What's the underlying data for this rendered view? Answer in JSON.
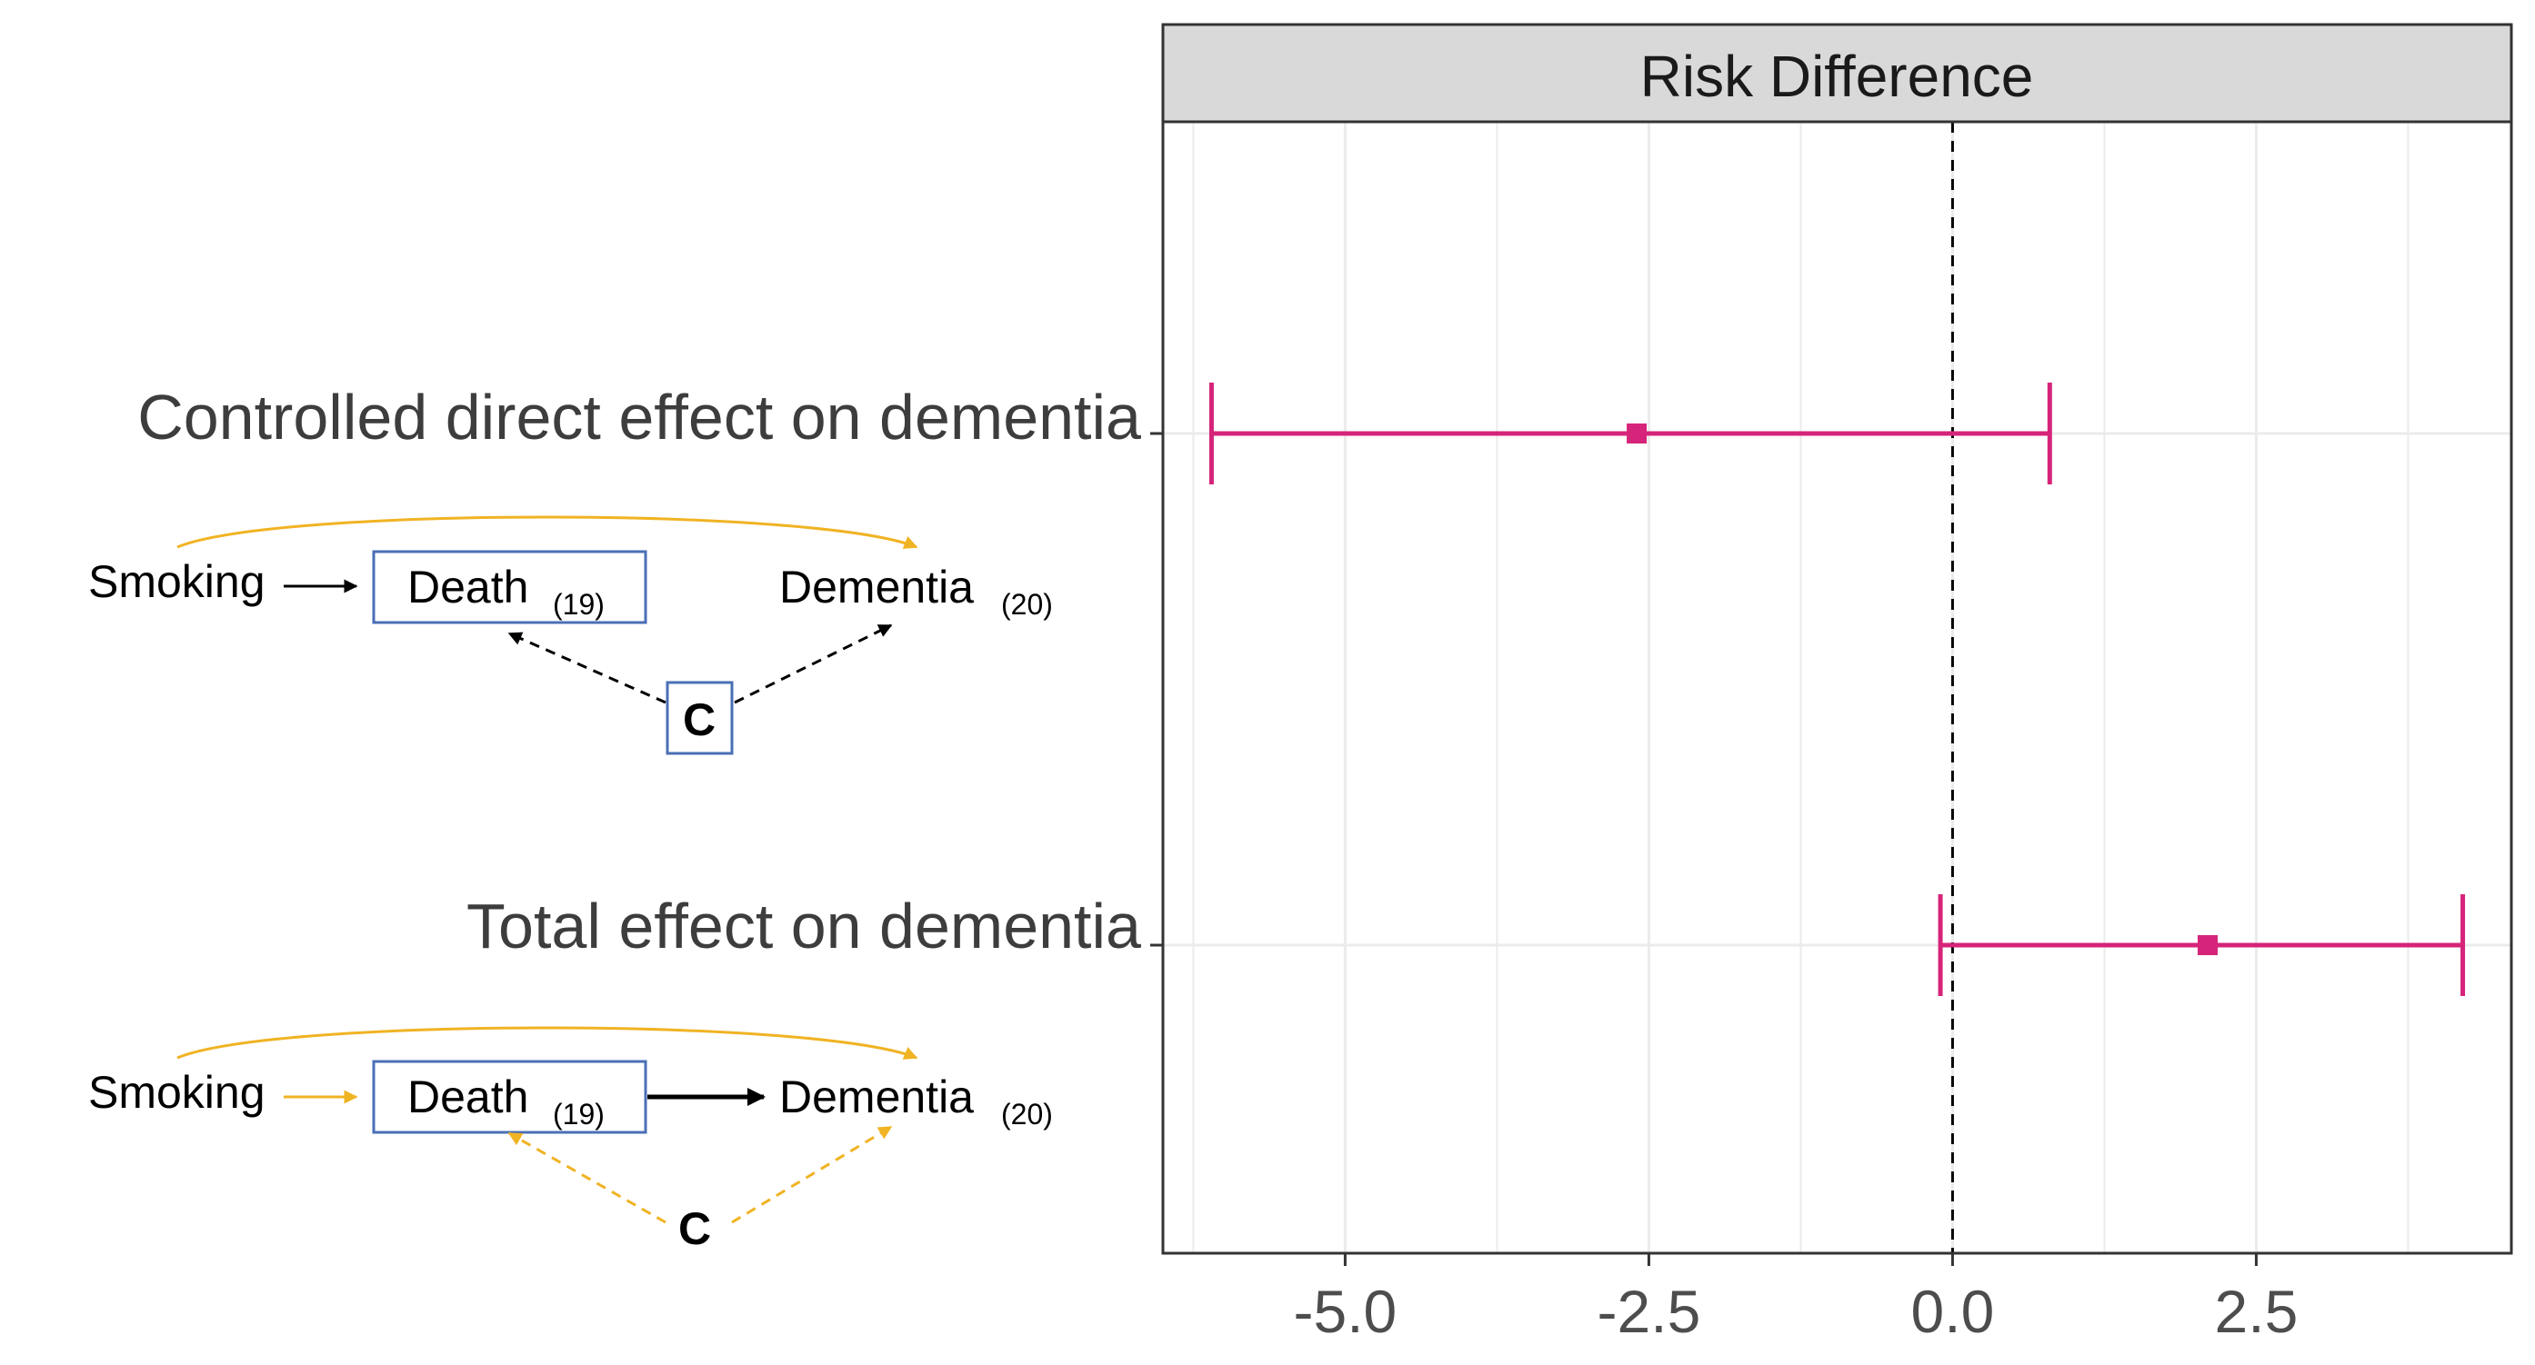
{
  "chart_data": {
    "type": "forest",
    "facet_title": "Risk Difference",
    "xlabel": "",
    "ylabel": "",
    "xlim": [
      -6.5,
      4.6
    ],
    "x_ticks": [
      -5.0,
      -2.5,
      0.0,
      2.5
    ],
    "x_tick_labels": [
      "-5.0",
      "-2.5",
      "0.0",
      "2.5"
    ],
    "reference_line": 0.0,
    "grid": true,
    "color": "#D6247A",
    "rows": [
      {
        "label": "Controlled direct effect on dementia",
        "estimate": -2.6,
        "lower": -6.1,
        "upper": 0.8
      },
      {
        "label": "Total effect on dementia",
        "estimate": 2.1,
        "lower": -0.1,
        "upper": 4.2
      }
    ]
  },
  "dags": [
    {
      "exposure": "Smoking",
      "mediator": "Death",
      "mediator_ref": "(19)",
      "outcome": "Dementia",
      "outcome_ref": "(20)",
      "confounder": "C"
    },
    {
      "exposure": "Smoking",
      "mediator": "Death",
      "mediator_ref": "(19)",
      "outcome": "Dementia",
      "outcome_ref": "(20)",
      "confounder": "C"
    }
  ],
  "colors": {
    "path_highlight": "#F0B323",
    "box_border": "#4A6FB5",
    "grid": "#EBEBEB",
    "strip_fill": "#D9D9D9"
  }
}
